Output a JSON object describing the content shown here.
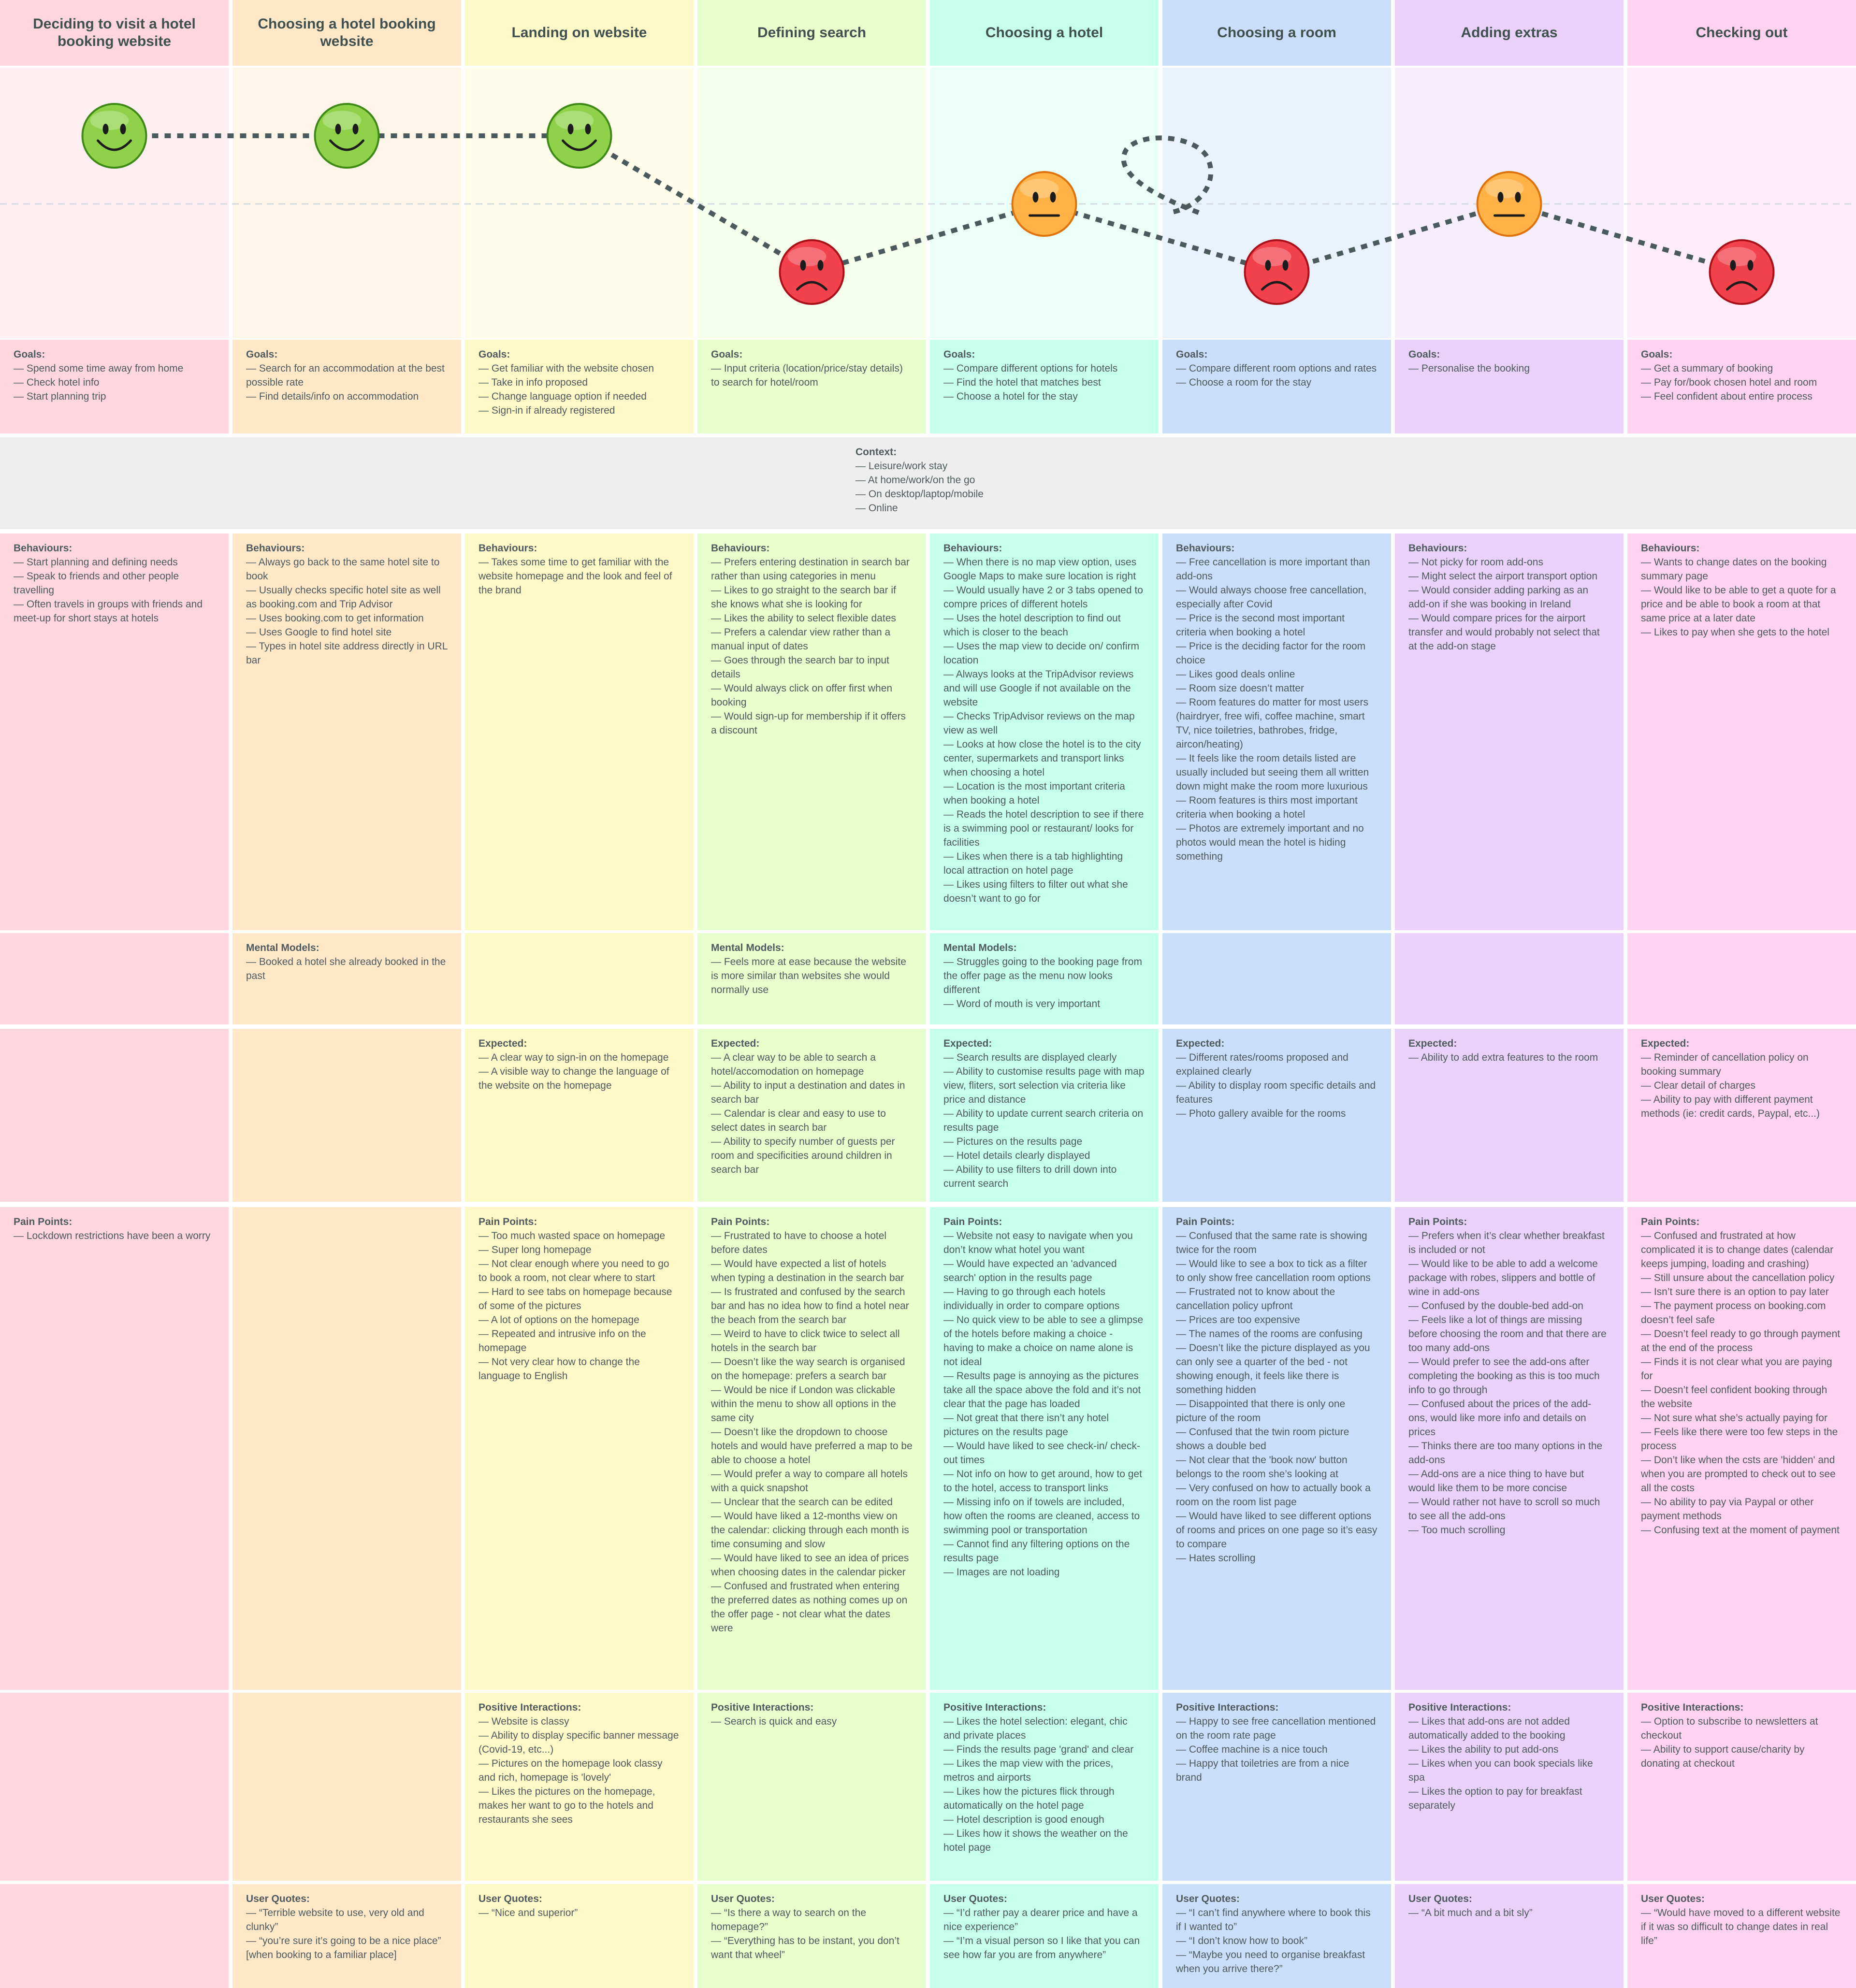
{
  "stages": [
    {
      "title": "Deciding to visit a hotel booking website",
      "color": "#ffd6e0",
      "emotion": "happy"
    },
    {
      "title": "Choosing a hotel booking website",
      "color": "#ffe8c8",
      "emotion": "happy"
    },
    {
      "title": "Landing on website",
      "color": "#fff9c8",
      "emotion": "happy"
    },
    {
      "title": "Defining search",
      "color": "#e6ffcc",
      "emotion": "sad"
    },
    {
      "title": "Choosing a hotel",
      "color": "#c6ffec",
      "emotion": "neutral"
    },
    {
      "title": "Choosing a room",
      "color": "#c8def9",
      "emotion": "sad"
    },
    {
      "title": "Adding extras",
      "color": "#e9d2fa",
      "emotion": "neutral"
    },
    {
      "title": "Checking out",
      "color": "#ffd2ef",
      "emotion": "sad"
    }
  ],
  "context": {
    "title": "Context:",
    "items": [
      "Leisure/work stay",
      "At home/work/on the go",
      "On desktop/laptop/mobile",
      "Online"
    ]
  },
  "rows": [
    {
      "key": "goals",
      "cells": [
        {
          "title": "Goals:",
          "items": [
            "Spend some time away from home",
            "Check hotel info",
            "Start planning trip"
          ]
        },
        {
          "title": "Goals:",
          "items": [
            "Search for an accommodation at the best possible rate",
            "Find details/info on accommodation"
          ]
        },
        {
          "title": "Goals:",
          "items": [
            "Get familiar with the website chosen",
            "Take in info proposed",
            "Change language option if needed",
            "Sign-in if already registered"
          ]
        },
        {
          "title": "Goals:",
          "items": [
            "Input criteria (location/price/stay details) to search for hotel/room"
          ]
        },
        {
          "title": "Goals:",
          "items": [
            "Compare different options for hotels",
            "Find the hotel that matches best",
            "Choose a hotel for the stay"
          ]
        },
        {
          "title": "Goals:",
          "items": [
            "Compare different room options and rates",
            "Choose a room for the stay"
          ]
        },
        {
          "title": "Goals:",
          "items": [
            "Personalise the booking"
          ]
        },
        {
          "title": "Goals:",
          "items": [
            "Get a summary of booking",
            "Pay for/book chosen hotel and room",
            "Feel confident about entire process"
          ]
        }
      ]
    },
    {
      "key": "behaviours",
      "cells": [
        {
          "title": "Behaviours:",
          "items": [
            "Start planning and defining needs",
            "Speak to friends and other people travelling",
            "Often travels in groups with friends and meet-up for short stays at hotels"
          ]
        },
        {
          "title": "Behaviours:",
          "items": [
            "Always go back to the same hotel site to book",
            "Usually checks specific hotel site as well as booking.com and Trip Advisor",
            "Uses booking.com to get information",
            "Uses Google to find hotel site",
            "Types in hotel site address directly in URL bar"
          ]
        },
        {
          "title": "Behaviours:",
          "items": [
            "Takes some time to get familiar with the website homepage and the look and feel of the brand"
          ]
        },
        {
          "title": "Behaviours:",
          "items": [
            "Prefers entering destination in search bar rather than using categories in menu",
            "Likes to go straight to the search bar if she knows what she is looking for",
            "Likes the ability to select flexible dates",
            "Prefers a calendar view rather than a manual input of dates",
            "Goes through the search bar to input details",
            "Would always click on offer first when booking",
            "Would sign-up for membership if it offers a discount"
          ]
        },
        {
          "title": "Behaviours:",
          "items": [
            "When there is no map view option, uses Google Maps to make sure location is right",
            "Would usually have 2 or 3 tabs opened to compre prices of different hotels",
            "Uses the hotel description to find out which is closer to the beach",
            "Uses the map view to decide on/ confirm location",
            "Always looks at the TripAdvisor reviews and will use Google if not available on the website",
            "Checks TripAdvisor reviews on the map view as well",
            "Looks at how close the hotel is to the city center, supermarkets and transport links when choosing a hotel",
            "Location is the most important criteria when booking a hotel",
            "Reads the hotel description to see if there is a swimming pool or restaurant/ looks for facilities",
            "Likes when there is a tab highlighting local attraction on hotel page",
            "Likes using filters to filter out what she doesn’t want to go for"
          ]
        },
        {
          "title": "Behaviours:",
          "items": [
            "Free cancellation is more important than add-ons",
            "Would always choose free cancellation, especially after Covid",
            "Price is the second most important criteria when booking a hotel",
            "Price is the deciding factor for the room choice",
            "Likes good deals online",
            "Room size doesn’t matter",
            "Room features do matter for most users (hairdryer, free wifi, coffee machine, smart TV, nice toiletries, bathrobes, fridge, aircon/heating)",
            "It feels like the room details listed are usually included but seeing them all written down might make the room more luxurious",
            "Room features is thirs most important criteria when booking a hotel",
            "Photos are extremely important and no photos would mean the hotel is hiding something"
          ]
        },
        {
          "title": "Behaviours:",
          "items": [
            "Not picky for room add-ons",
            "Might select the airport transport option",
            "Would consider adding parking as an add-on if she was booking in Ireland",
            "Would compare prices for the airport transfer and would probably not select that at the add-on stage"
          ]
        },
        {
          "title": "Behaviours:",
          "items": [
            "Wants to change dates on the booking summary page",
            "Would like to be able to get a quote for a price and be able to book a room at that same price at a later date",
            "Likes to pay when she gets to the hotel"
          ]
        }
      ]
    },
    {
      "key": "mental",
      "cells": [
        {
          "title": "",
          "items": []
        },
        {
          "title": "Mental Models:",
          "items": [
            "Booked a hotel she already booked in the past"
          ]
        },
        {
          "title": "",
          "items": []
        },
        {
          "title": "Mental Models:",
          "items": [
            "Feels more at ease because the website is more similar than websites she would normally use"
          ]
        },
        {
          "title": "Mental Models:",
          "items": [
            "Struggles going to the booking page from the offer page as the menu now looks different",
            "Word of mouth is very important"
          ]
        },
        {
          "title": "",
          "items": []
        },
        {
          "title": "",
          "items": []
        },
        {
          "title": "",
          "items": []
        }
      ]
    },
    {
      "key": "expected",
      "cells": [
        {
          "title": "",
          "items": []
        },
        {
          "title": "",
          "items": []
        },
        {
          "title": "Expected:",
          "items": [
            "A clear way to sign-in on the homepage",
            "A visible way to change the language of the website on the homepage"
          ]
        },
        {
          "title": "Expected:",
          "items": [
            "A clear way to be able to search a hotel/accomodation on homepage",
            "Ability to input a destination and dates in search bar",
            "Calendar is clear and easy to use to select dates in search bar",
            "Ability to specify number of guests per room and specificities around children in search bar"
          ]
        },
        {
          "title": "Expected:",
          "items": [
            "Search results are displayed clearly",
            "Ability to customise results page with map view, fliters, sort selection via criteria like price and distance",
            "Ability to update current search criteria on results page",
            "Pictures on the results page",
            "Hotel details clearly displayed",
            "Ability to use filters to drill down into current search"
          ]
        },
        {
          "title": "Expected:",
          "items": [
            "Different rates/rooms proposed and explained clearly",
            "Ability to display room specific details and features",
            "Photo gallery avaible for the rooms"
          ]
        },
        {
          "title": "Expected:",
          "items": [
            "Ability to add extra features to the room"
          ]
        },
        {
          "title": "Expected:",
          "items": [
            "Reminder of cancellation policy on booking summary",
            "Clear detail of charges",
            "Ability to pay with different payment methods (ie: credit cards, Paypal, etc...)"
          ]
        }
      ]
    },
    {
      "key": "pain",
      "cells": [
        {
          "title": "Pain Points:",
          "items": [
            "Lockdown restrictions have been a worry"
          ]
        },
        {
          "title": "",
          "items": []
        },
        {
          "title": "Pain Points:",
          "items": [
            "Too much wasted space on homepage",
            "Super long homepage",
            "Not clear enough where you need to go to book a room, not clear where to start",
            "Hard to see tabs on homepage because of some of the pictures",
            "A lot of options on the homepage",
            "Repeated and intrusive info on the homepage",
            "Not very clear how to change the language to English"
          ]
        },
        {
          "title": "Pain Points:",
          "items": [
            "Frustrated to have to choose a hotel before dates",
            "Would have expected a list of hotels when typing a destination in the search bar",
            "Is frustrated and confused by the search bar and has no idea how to find a hotel near the beach from the search bar",
            "Weird to have to click twice to select all hotels in the search bar",
            "Doesn’t like the way search is organised on the homepage: prefers a search bar",
            "Would be nice if London was clickable within the menu to show all options in the same city",
            "Doesn’t like the dropdown to choose hotels and would have preferred a map to be able to choose a hotel",
            "Would prefer a way to compare all hotels with a quick snapshot",
            "Unclear that the search can be edited",
            "Would have liked a 12-months view on the calendar: clicking through each month is time consuming and slow",
            "Would have liked to see an idea of prices when choosing dates in the calendar picker",
            "Confused and frustrated when entering the preferred dates as nothing comes up on the offer page - not clear what the dates were"
          ]
        },
        {
          "title": "Pain Points:",
          "items": [
            "Website not easy to navigate when you don’t know what hotel you want",
            "Would have expected an 'advanced search' option in the results page",
            "Having to go through each hotels individually in order to compare options",
            "No quick view to be able to see a glimpse of the hotels before making a choice - having to make a choice on name alone is not ideal",
            "Results page is annoying as the pictures take all the space above the fold and it’s not clear that the page has loaded",
            "Not great that there isn’t any hotel pictures on the results page",
            "Would have liked to see check-in/ check-out times",
            "Not info on how to get around, how to get to the hotel, access to transport links",
            "Missing info on if towels are included, how often the rooms are cleaned, access to swimming pool or transportation",
            "Cannot find any filtering options on the results page",
            "Images are not loading"
          ]
        },
        {
          "title": "Pain Points:",
          "items": [
            "Confused that the same rate is showing twice for the room",
            "Would like to see a box to tick as a filter to only show free cancellation room options",
            "Frustrated not to know about the cancellation policy upfront",
            "Prices are too expensive",
            "The names of the rooms are confusing",
            "Doesn’t like the picture displayed as you can only see a quarter of the bed - not showing enough, it feels like there is something hidden",
            "Disappointed that there is only one picture of the room",
            "Confused that the twin room picture shows a double bed",
            "Not clear that the 'book now' button belongs to the room she’s looking at",
            "Very confused on how to actually book a room on the room list page",
            "Would have liked to see different options of rooms and prices on one page so it’s easy to compare",
            "Hates scrolling"
          ]
        },
        {
          "title": "Pain Points:",
          "items": [
            "Prefers when it’s clear whether breakfast is included or not",
            "Would like to be able to add a welcome package with robes, slippers and bottle of wine in add-ons",
            "Confused by the double-bed add-on",
            "Feels like a lot of things are missing before choosing the room and that there are too many add-ons",
            "Would prefer to see the add-ons after completing the booking as this is too much info to go through",
            "Confused about the prices of the add-ons, would like more info and details on prices",
            "Thinks there are too many options in the add-ons",
            "Add-ons are a nice thing to have but would like them to be more concise",
            "Would rather not have to scroll so much to see all the add-ons",
            "Too much scrolling"
          ]
        },
        {
          "title": "Pain Points:",
          "items": [
            "Confused and frustrated at how complicated it is to change dates (calendar keeps jumping, loading and crashing)",
            "Still unsure about the cancellation policy",
            "Isn’t sure there is an option to pay later",
            "The payment process on booking.com doesn’t feel safe",
            "Doesn’t feel ready to go through payment at the end of the process",
            "Finds it is not clear what you are paying for",
            "Doesn’t feel confident booking through the website",
            "Not sure what she’s actually paying for",
            "Feels like there were too few steps in the process",
            "Don’t like when the csts are 'hidden' and when you are prompted to check out to see all the costs",
            "No ability to pay via Paypal or other payment methods",
            "Confusing text at the moment of payment"
          ]
        }
      ]
    },
    {
      "key": "positive",
      "cells": [
        {
          "title": "",
          "items": []
        },
        {
          "title": "",
          "items": []
        },
        {
          "title": "Positive Interactions:",
          "items": [
            "Website is classy",
            "Ability to display specific banner message (Covid-19, etc...)",
            "Pictures on the homepage look classy and rich, homepage is 'lovely'",
            "Likes the pictures on the homepage, makes her want to go to the hotels and restaurants she sees"
          ]
        },
        {
          "title": "Positive Interactions:",
          "items": [
            "Search is quick and easy"
          ]
        },
        {
          "title": "Positive Interactions:",
          "items": [
            "Likes the hotel selection: elegant, chic and private places",
            "Finds the results page 'grand' and clear",
            "Likes the map view with the prices, metros and airports",
            "Likes how the pictures flick through automatically on the hotel page",
            "Hotel description is good enough",
            "Likes how it shows the weather on the hotel page"
          ]
        },
        {
          "title": "Positive Interactions:",
          "items": [
            "Happy to see free cancellation mentioned on the room rate page",
            "Coffee machine is a nice touch",
            "Happy that toiletries are from a nice brand"
          ]
        },
        {
          "title": "Positive Interactions:",
          "items": [
            "Likes that add-ons are not added automatically added to the booking",
            "Likes the ability to put add-ons",
            "Likes when you can book specials like spa",
            "Likes the option to pay for breakfast separately"
          ]
        },
        {
          "title": "Positive Interactions:",
          "items": [
            "Option to subscribe to newsletters at checkout",
            "Ability to support cause/charity by donating at checkout"
          ]
        }
      ]
    },
    {
      "key": "quotes",
      "cells": [
        {
          "title": "",
          "items": []
        },
        {
          "title": "User Quotes:",
          "items": [
            "“Terrible website to use, very old and clunky”",
            "“you’re sure it’s going to be a nice place” [when booking to a familiar place]"
          ]
        },
        {
          "title": "User Quotes:",
          "items": [
            "“Nice and superior”"
          ]
        },
        {
          "title": "User Quotes:",
          "items": [
            "“Is there a way to search on the homepage?”",
            "“Everything has to be instant, you don’t want that wheel”"
          ]
        },
        {
          "title": "User Quotes:",
          "items": [
            "“I’d rather pay a dearer price and have a nice experience”",
            "“I’m a visual person so I like that you can see how far you are from anywhere”"
          ]
        },
        {
          "title": "User Quotes:",
          "items": [
            "“I can’t find anywhere where to book this if I wanted to”",
            "“I don’t know how to book”",
            "“Maybe you need to organise breakfast when you arrive there?”"
          ]
        },
        {
          "title": "User Quotes:",
          "items": [
            "“A bit much and a bit sly”"
          ]
        },
        {
          "title": "User Quotes:",
          "items": [
            "“Would have moved to a different website if it was so difficult to change dates in real life”"
          ]
        }
      ]
    }
  ]
}
